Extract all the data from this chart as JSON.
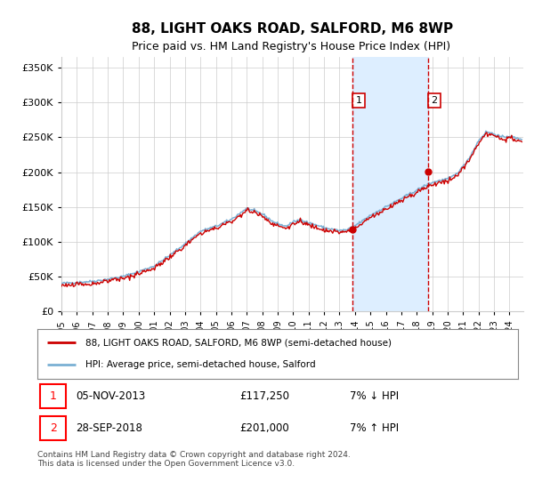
{
  "title": "88, LIGHT OAKS ROAD, SALFORD, M6 8WP",
  "subtitle": "Price paid vs. HM Land Registry's House Price Index (HPI)",
  "ylabel_ticks": [
    "£0",
    "£50K",
    "£100K",
    "£150K",
    "£200K",
    "£250K",
    "£300K",
    "£350K"
  ],
  "ytick_values": [
    0,
    50000,
    100000,
    150000,
    200000,
    250000,
    300000,
    350000
  ],
  "ylim": [
    0,
    365000
  ],
  "xlim_start": 1995.0,
  "xlim_end": 2024.9,
  "xtick_years": [
    1995,
    1996,
    1997,
    1998,
    1999,
    2000,
    2001,
    2002,
    2003,
    2004,
    2005,
    2006,
    2007,
    2008,
    2009,
    2010,
    2011,
    2012,
    2013,
    2014,
    2015,
    2016,
    2017,
    2018,
    2019,
    2020,
    2021,
    2022,
    2023,
    2024
  ],
  "hpi_color": "#7ab0d4",
  "price_color": "#cc0000",
  "sale1_date": 2013.85,
  "sale1_price": 117250,
  "sale2_date": 2018.73,
  "sale2_price": 201000,
  "sale1_label": "1",
  "sale2_label": "2",
  "vspan_color": "#ddeeff",
  "vline_color": "#cc0000",
  "legend_line1": "88, LIGHT OAKS ROAD, SALFORD, M6 8WP (semi-detached house)",
  "legend_line2": "HPI: Average price, semi-detached house, Salford",
  "footer": "Contains HM Land Registry data © Crown copyright and database right 2024.\nThis data is licensed under the Open Government Licence v3.0.",
  "background_color": "#ffffff",
  "grid_color": "#cccccc"
}
